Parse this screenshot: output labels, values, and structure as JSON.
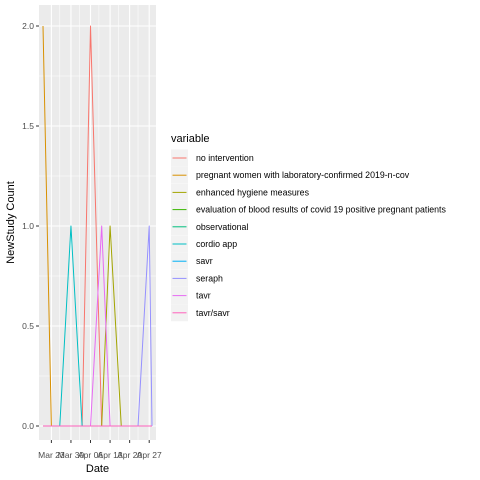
{
  "chart_data": {
    "type": "line",
    "title": "",
    "xlabel": "Date",
    "ylabel": "NewStudy Count",
    "x_dates": [
      "2020-03-20",
      "2020-03-23",
      "2020-03-26",
      "2020-03-30",
      "2020-04-03",
      "2020-04-06",
      "2020-04-10",
      "2020-04-13",
      "2020-04-17",
      "2020-04-20",
      "2020-04-23",
      "2020-04-27",
      "2020-04-28"
    ],
    "x_ticks": [
      {
        "date": "2020-03-23",
        "label": "Mar 23"
      },
      {
        "date": "2020-03-30",
        "label": "Mar 30"
      },
      {
        "date": "2020-04-06",
        "label": "Apr 06"
      },
      {
        "date": "2020-04-13",
        "label": "Apr 13"
      },
      {
        "date": "2020-04-20",
        "label": "Apr 20"
      },
      {
        "date": "2020-04-27",
        "label": "Apr 27"
      }
    ],
    "xlim": [
      "2020-03-20",
      "2020-04-28"
    ],
    "y_ticks": [
      {
        "value": 0,
        "label": "0.0"
      },
      {
        "value": 0.5,
        "label": "0.5"
      },
      {
        "value": 1,
        "label": "1.0"
      },
      {
        "value": 1.5,
        "label": "1.5"
      },
      {
        "value": 2,
        "label": "2.0"
      }
    ],
    "ylim": [
      0,
      2
    ],
    "grid": true,
    "legend_title": "variable",
    "legend_position": "right",
    "series": [
      {
        "name": "no intervention",
        "color": "#F8766D",
        "values": [
          0,
          0,
          0,
          0,
          0,
          2,
          0,
          0,
          0,
          0,
          0,
          0,
          0
        ]
      },
      {
        "name": "pregnant women with laboratory-confirmed 2019-n-cov",
        "color": "#D89000",
        "values": [
          2,
          0,
          0,
          0,
          0,
          0,
          0,
          0,
          0,
          0,
          0,
          0,
          0
        ]
      },
      {
        "name": "enhanced hygiene measures",
        "color": "#A3A500",
        "values": [
          0,
          0,
          0,
          0,
          0,
          0,
          0,
          1,
          0,
          0,
          0,
          0,
          0
        ]
      },
      {
        "name": "evaluation of blood results of covid 19 positive pregnant patients",
        "color": "#39B600",
        "values": [
          0,
          0,
          0,
          0,
          0,
          0,
          0,
          0,
          0,
          0,
          0,
          0,
          0
        ]
      },
      {
        "name": "observational",
        "color": "#00BF7D",
        "values": [
          0,
          0,
          0,
          0,
          0,
          0,
          0,
          0,
          0,
          0,
          0,
          0,
          0
        ]
      },
      {
        "name": "cordio app",
        "color": "#00BFC4",
        "values": [
          0,
          0,
          0,
          1,
          0,
          0,
          0,
          0,
          0,
          0,
          0,
          0,
          0
        ]
      },
      {
        "name": "savr",
        "color": "#00B0F6",
        "values": [
          0,
          0,
          0,
          0,
          0,
          0,
          0,
          0,
          0,
          0,
          0,
          0,
          0
        ]
      },
      {
        "name": "seraph",
        "color": "#9590FF",
        "values": [
          0,
          0,
          0,
          0,
          0,
          0,
          0,
          0,
          0,
          0,
          0,
          1,
          0
        ]
      },
      {
        "name": "tavr",
        "color": "#E76BF3",
        "values": [
          0,
          0,
          0,
          0,
          0,
          0,
          1,
          0,
          0,
          0,
          0,
          0,
          0
        ]
      },
      {
        "name": "tavr/savr",
        "color": "#FF62BC",
        "values": [
          0,
          0,
          0,
          0,
          0,
          0,
          0,
          0,
          0,
          0,
          0,
          0,
          0
        ]
      }
    ]
  }
}
